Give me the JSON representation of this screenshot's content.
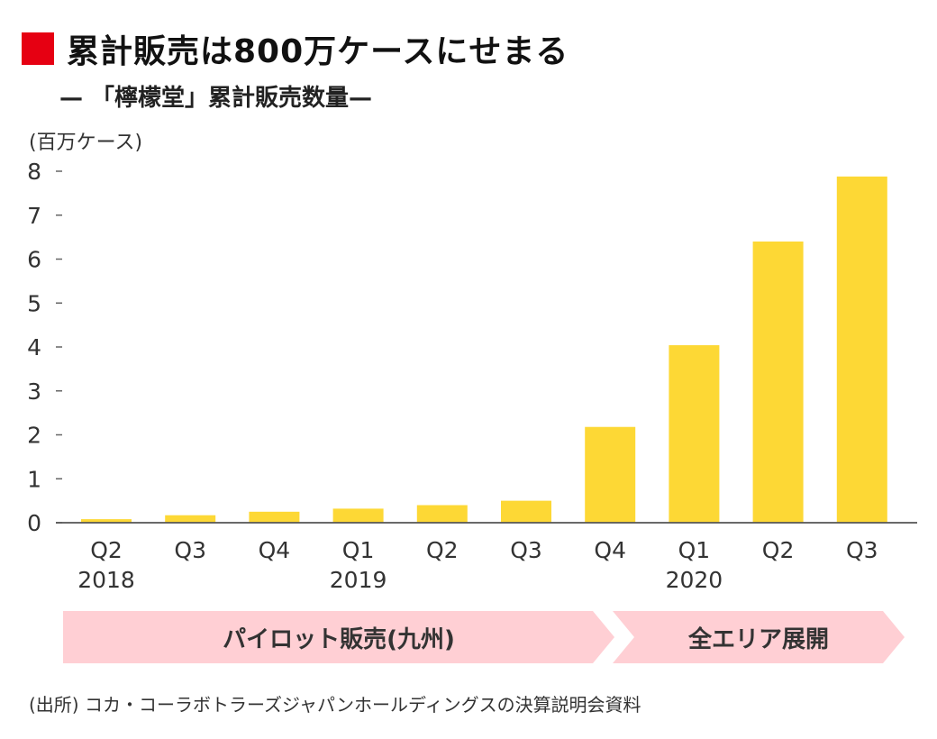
{
  "header": {
    "title": "累計販売は800万ケースにせまる",
    "subtitle": "— 「檸檬堂」累計販売数量—"
  },
  "colors": {
    "accent": "#e60012",
    "bar": "#fdd835",
    "band": "#ffcfd4"
  },
  "chart_data": {
    "type": "bar",
    "title": "累計販売は800万ケースにせまる",
    "subtitle": "— 「檸檬堂」累計販売数量—",
    "ylabel": "(百万ケース)",
    "ylim": [
      0,
      8
    ],
    "yticks": [
      0,
      1,
      2,
      3,
      4,
      5,
      6,
      7,
      8
    ],
    "categories": [
      "Q2",
      "Q3",
      "Q4",
      "Q1",
      "Q2",
      "Q3",
      "Q4",
      "Q1",
      "Q2",
      "Q3"
    ],
    "year_labels": [
      "2018",
      "",
      "",
      "2019",
      "",
      "",
      "",
      "2020",
      "",
      ""
    ],
    "values": [
      0.08,
      0.17,
      0.25,
      0.32,
      0.4,
      0.5,
      2.18,
      4.04,
      6.4,
      7.88
    ],
    "grid": false
  },
  "phases": [
    {
      "label": "パイロット販売(九州)"
    },
    {
      "label": "全エリア展開"
    }
  ],
  "source": "(出所) コカ・コーラボトラーズジャパンホールディングスの決算説明会資料"
}
